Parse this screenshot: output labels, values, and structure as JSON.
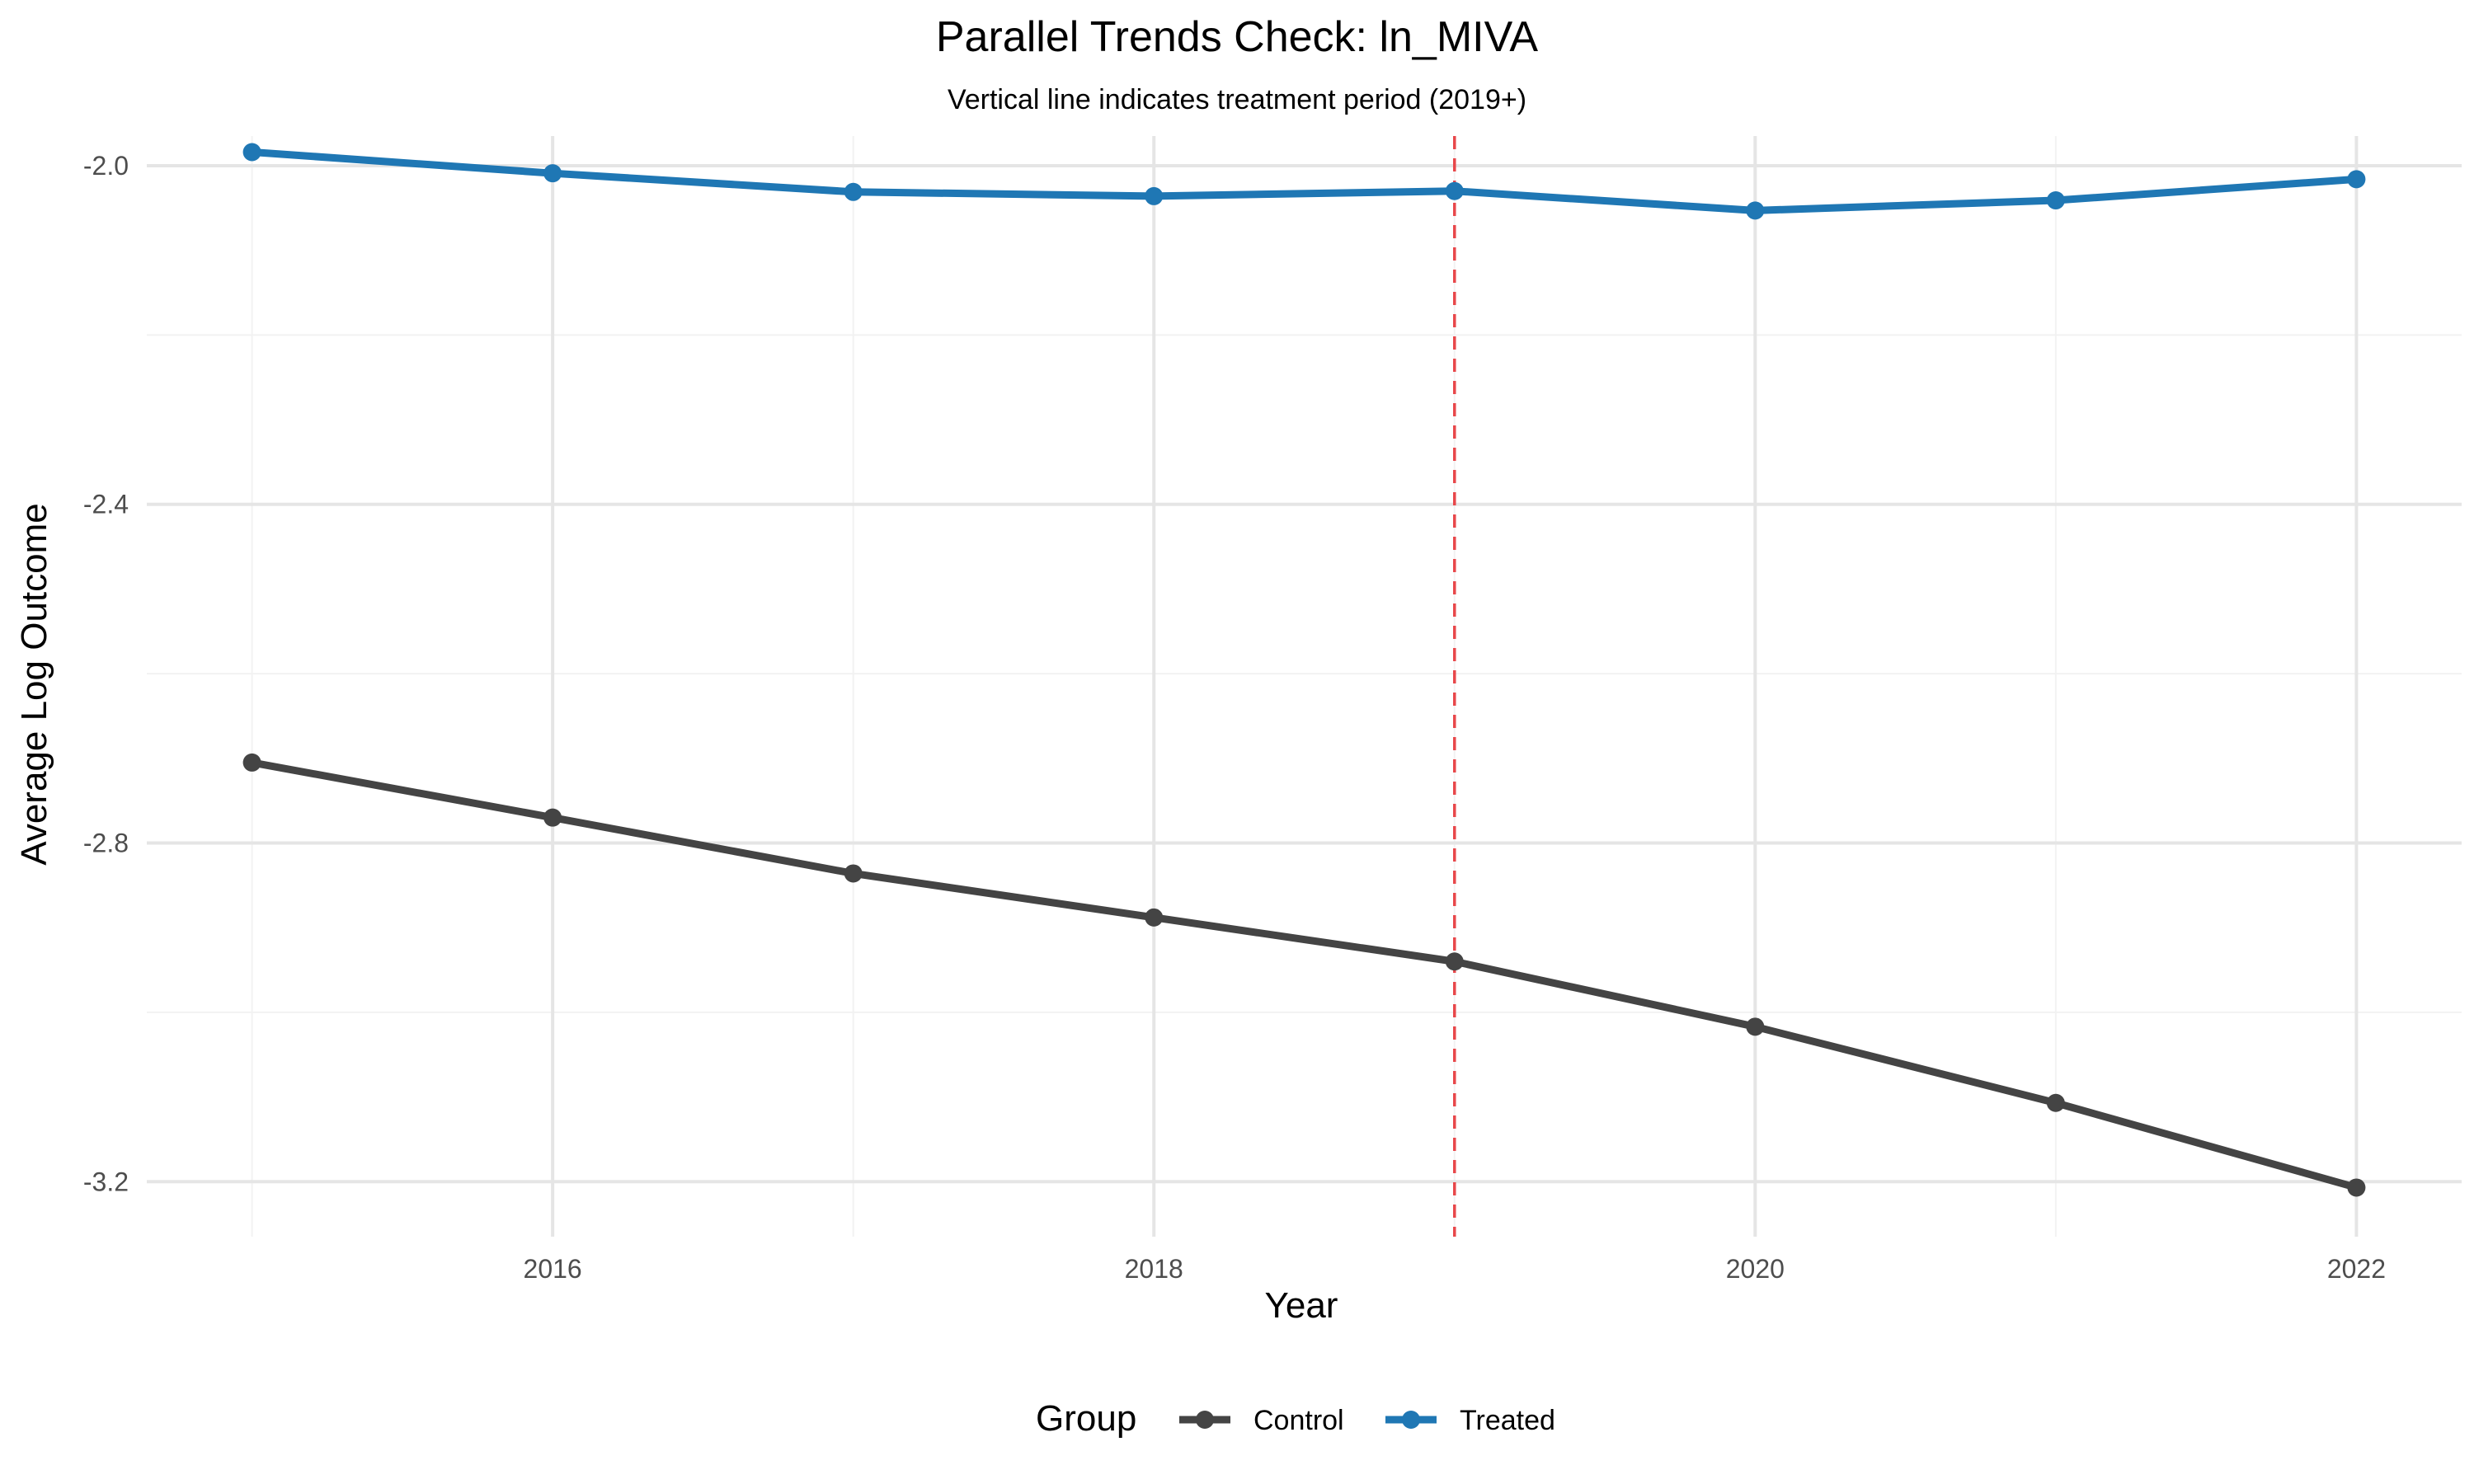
{
  "chart_data": {
    "type": "line",
    "title": "Parallel Trends Check: ln_MIVA",
    "subtitle": "Vertical line indicates treatment period (2019+)",
    "xlabel": "Year",
    "ylabel": "Average Log Outcome",
    "x": [
      2015,
      2016,
      2017,
      2018,
      2019,
      2020,
      2021,
      2022
    ],
    "xlim": [
      2014.65,
      2022.35
    ],
    "ylim": [
      -3.265,
      -1.965
    ],
    "x_ticks": [
      2016,
      2018,
      2020,
      2022
    ],
    "x_tick_labels": [
      "2016",
      "2018",
      "2020",
      "2022"
    ],
    "x_minor_ticks": [
      2015,
      2017,
      2019,
      2021
    ],
    "y_ticks": [
      -2.0,
      -2.4,
      -2.8,
      -3.2
    ],
    "y_tick_labels": [
      "-2.0",
      "-2.4",
      "-2.8",
      "-3.2"
    ],
    "y_minor_ticks": [
      -2.2,
      -2.6,
      -3.0
    ],
    "grid": true,
    "vline": {
      "x": 2019,
      "color": "#e8474a",
      "style": "dashed"
    },
    "legend": {
      "title": "Group",
      "position": "bottom",
      "entries": [
        {
          "label": "Control",
          "color": "#444444"
        },
        {
          "label": "Treated",
          "color": "#1f77b4"
        }
      ]
    },
    "series": [
      {
        "name": "Control",
        "color": "#444444",
        "values": [
          -2.705,
          -2.77,
          -2.836,
          -2.888,
          -2.94,
          -3.017,
          -3.107,
          -3.207
        ]
      },
      {
        "name": "Treated",
        "color": "#1f77b4",
        "values": [
          -1.984,
          -2.009,
          -2.031,
          -2.036,
          -2.03,
          -2.053,
          -2.041,
          -2.016
        ]
      }
    ]
  }
}
